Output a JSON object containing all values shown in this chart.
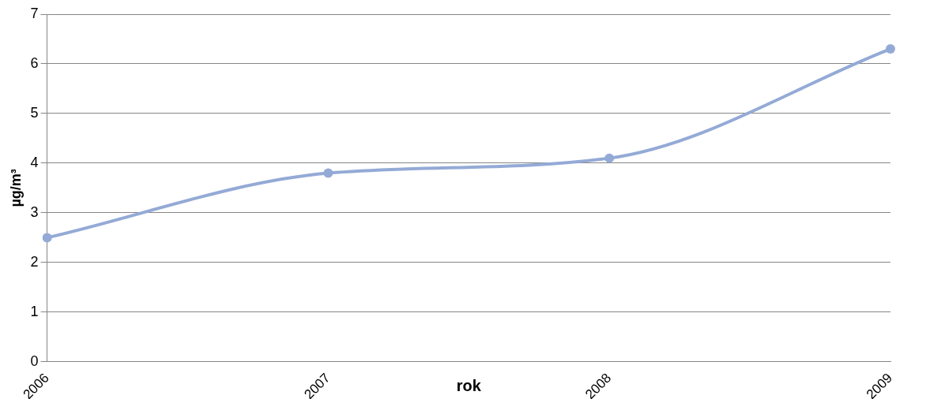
{
  "chart_data": {
    "type": "line",
    "xlabel": "rok",
    "ylabel": "µg/m³",
    "categories": [
      "2006",
      "2007",
      "2008",
      "2009"
    ],
    "series": [
      {
        "color": "#94aad6",
        "values": [
          2.5,
          3.8,
          4.1,
          6.3
        ]
      }
    ],
    "ylim": [
      0,
      7
    ],
    "yticks": [
      0,
      1,
      2,
      3,
      4,
      5,
      6,
      7
    ],
    "grid": "y",
    "legend": false,
    "marker": "circle",
    "line_style": "solid"
  }
}
